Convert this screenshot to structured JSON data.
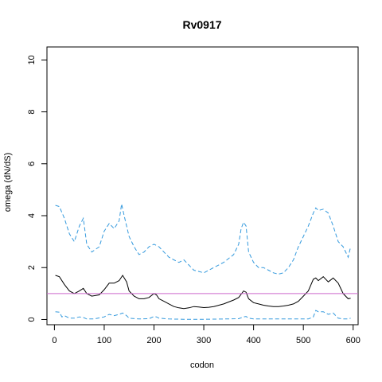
{
  "chart_data": {
    "type": "line",
    "title": "Rv0917",
    "xlabel": "codon",
    "ylabel": "omega (dN/dS)",
    "xlim": [
      -15,
      610
    ],
    "ylim": [
      -0.2,
      10.5
    ],
    "xticks": [
      0,
      100,
      200,
      300,
      400,
      500,
      600
    ],
    "yticks": [
      0,
      2,
      4,
      6,
      8,
      10
    ],
    "xtick_labels": [
      "0",
      "100",
      "200",
      "300",
      "400",
      "500",
      "600"
    ],
    "ytick_labels": [
      "0",
      "2",
      "4",
      "6",
      "8",
      "10"
    ],
    "reference_line": {
      "y": 1.0,
      "color": "#cc66cc"
    },
    "grid": false,
    "series": [
      {
        "role": "upper-bound",
        "style": "dashed",
        "color": "#3399dd",
        "x": [
          2,
          10,
          20,
          30,
          40,
          50,
          58,
          65,
          75,
          90,
          100,
          110,
          120,
          130,
          135,
          140,
          150,
          160,
          170,
          180,
          190,
          200,
          210,
          220,
          230,
          240,
          250,
          260,
          270,
          280,
          290,
          300,
          310,
          320,
          340,
          360,
          370,
          375,
          380,
          385,
          390,
          400,
          410,
          420,
          430,
          440,
          450,
          460,
          470,
          480,
          490,
          500,
          510,
          520,
          525,
          530,
          540,
          550,
          560,
          570,
          580,
          590,
          595
        ],
        "y": [
          4.4,
          4.35,
          3.9,
          3.3,
          3.0,
          3.6,
          3.9,
          2.9,
          2.6,
          2.8,
          3.4,
          3.7,
          3.5,
          3.8,
          4.45,
          4.0,
          3.2,
          2.8,
          2.5,
          2.6,
          2.8,
          2.9,
          2.8,
          2.6,
          2.4,
          2.3,
          2.2,
          2.3,
          2.1,
          1.9,
          1.85,
          1.8,
          1.9,
          2.0,
          2.2,
          2.5,
          2.9,
          3.5,
          3.75,
          3.6,
          2.6,
          2.2,
          2.0,
          2.0,
          1.9,
          1.8,
          1.75,
          1.8,
          2.0,
          2.3,
          2.8,
          3.2,
          3.6,
          4.1,
          4.3,
          4.2,
          4.25,
          4.1,
          3.6,
          3.0,
          2.8,
          2.4,
          2.8
        ]
      },
      {
        "role": "estimate",
        "style": "solid",
        "color": "#000000",
        "x": [
          2,
          10,
          20,
          30,
          40,
          50,
          58,
          65,
          75,
          90,
          100,
          110,
          120,
          130,
          137,
          145,
          150,
          160,
          170,
          180,
          190,
          200,
          205,
          210,
          220,
          230,
          240,
          250,
          260,
          270,
          280,
          290,
          300,
          310,
          320,
          340,
          360,
          370,
          380,
          385,
          390,
          400,
          410,
          420,
          430,
          440,
          450,
          460,
          470,
          480,
          490,
          500,
          510,
          520,
          525,
          530,
          540,
          550,
          560,
          570,
          580,
          590,
          595
        ],
        "y": [
          1.7,
          1.65,
          1.35,
          1.1,
          1.0,
          1.1,
          1.2,
          1.0,
          0.9,
          0.95,
          1.15,
          1.4,
          1.4,
          1.5,
          1.7,
          1.45,
          1.1,
          0.9,
          0.8,
          0.8,
          0.85,
          1.0,
          0.95,
          0.8,
          0.7,
          0.6,
          0.5,
          0.45,
          0.42,
          0.45,
          0.5,
          0.48,
          0.46,
          0.47,
          0.5,
          0.6,
          0.75,
          0.85,
          1.1,
          1.05,
          0.8,
          0.65,
          0.6,
          0.55,
          0.52,
          0.5,
          0.5,
          0.52,
          0.55,
          0.6,
          0.7,
          0.9,
          1.1,
          1.55,
          1.6,
          1.5,
          1.65,
          1.45,
          1.6,
          1.4,
          1.0,
          0.8,
          0.82
        ]
      },
      {
        "role": "lower-bound",
        "style": "dashed",
        "color": "#3399dd",
        "x": [
          2,
          10,
          15,
          20,
          30,
          40,
          50,
          58,
          65,
          80,
          100,
          110,
          120,
          130,
          137,
          145,
          150,
          170,
          190,
          200,
          205,
          210,
          230,
          260,
          300,
          340,
          370,
          380,
          385,
          390,
          400,
          430,
          460,
          490,
          510,
          520,
          525,
          530,
          540,
          550,
          560,
          565,
          570,
          580,
          590,
          595
        ],
        "y": [
          0.3,
          0.28,
          0.1,
          0.15,
          0.05,
          0.05,
          0.1,
          0.08,
          0.02,
          0.02,
          0.1,
          0.2,
          0.15,
          0.2,
          0.25,
          0.15,
          0.05,
          0.02,
          0.03,
          0.12,
          0.1,
          0.05,
          0.02,
          0.01,
          0.01,
          0.02,
          0.03,
          0.1,
          0.12,
          0.05,
          0.02,
          0.02,
          0.02,
          0.02,
          0.02,
          0.1,
          0.35,
          0.3,
          0.3,
          0.2,
          0.25,
          0.15,
          0.05,
          0.02,
          0.02,
          0.05
        ]
      }
    ]
  }
}
